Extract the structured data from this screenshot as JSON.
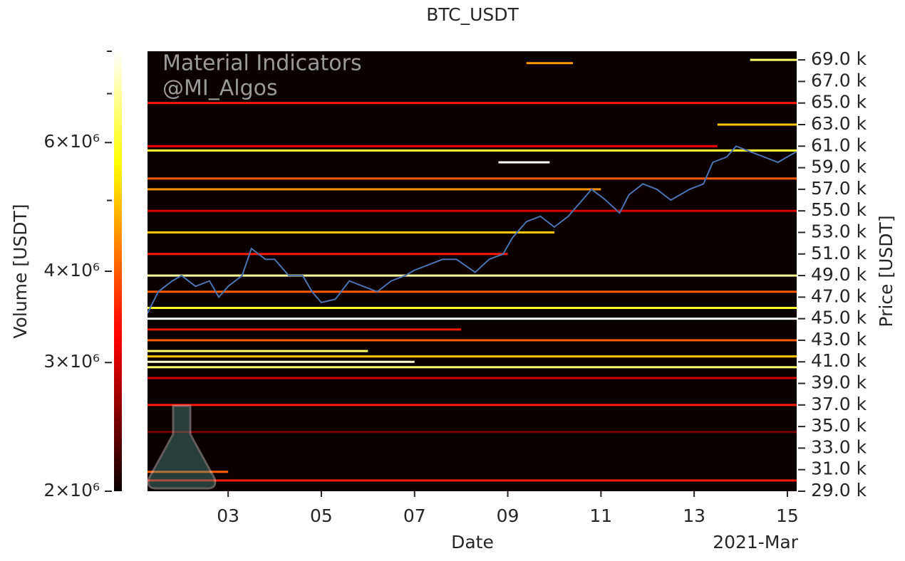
{
  "chart_data": {
    "type": "heatmap",
    "title": "BTC_USDT",
    "watermark": [
      "Material Indicators",
      "@MI_Algos"
    ],
    "xlabel": "Date",
    "x_offset_label": "2021-Mar",
    "ylabel": "Price [USDT]",
    "colorbar_label": "Volume [USDT]",
    "xlim": [
      1.27,
      15.2
    ],
    "xticks": [
      {
        "value": 3,
        "label": "03"
      },
      {
        "value": 5,
        "label": "05"
      },
      {
        "value": 7,
        "label": "07"
      },
      {
        "value": 9,
        "label": "09"
      },
      {
        "value": 11,
        "label": "11"
      },
      {
        "value": 13,
        "label": "13"
      },
      {
        "value": 15,
        "label": "15"
      }
    ],
    "ylim": [
      29000,
      69800
    ],
    "yticks": [
      {
        "value": 29000,
        "label": "29.0 k"
      },
      {
        "value": 31000,
        "label": "31.0 k"
      },
      {
        "value": 33000,
        "label": "33.0 k"
      },
      {
        "value": 35000,
        "label": "35.0 k"
      },
      {
        "value": 37000,
        "label": "37.0 k"
      },
      {
        "value": 39000,
        "label": "39.0 k"
      },
      {
        "value": 41000,
        "label": "41.0 k"
      },
      {
        "value": 43000,
        "label": "43.0 k"
      },
      {
        "value": 45000,
        "label": "45.0 k"
      },
      {
        "value": 47000,
        "label": "47.0 k"
      },
      {
        "value": 49000,
        "label": "49.0 k"
      },
      {
        "value": 51000,
        "label": "51.0 k"
      },
      {
        "value": 53000,
        "label": "53.0 k"
      },
      {
        "value": 55000,
        "label": "55.0 k"
      },
      {
        "value": 57000,
        "label": "57.0 k"
      },
      {
        "value": 59000,
        "label": "59.0 k"
      },
      {
        "value": 61000,
        "label": "61.0 k"
      },
      {
        "value": 63000,
        "label": "63.0 k"
      },
      {
        "value": 65000,
        "label": "65.0 k"
      },
      {
        "value": 67000,
        "label": "67.0 k"
      },
      {
        "value": 69000,
        "label": "69.0 k"
      }
    ],
    "colorbar_lim": [
      2000000,
      8000000
    ],
    "colorbar_log": true,
    "colorbar_ticks": [
      {
        "value": 2000000,
        "label": "2×10⁶"
      },
      {
        "value": 3000000,
        "label": "3×10⁶"
      },
      {
        "value": 4000000,
        "label": "4×10⁶"
      },
      {
        "value": 6000000,
        "label": "6×10⁶"
      }
    ],
    "colorbar_minor_ticks": [
      5000000,
      7000000,
      8000000
    ],
    "colormap": "hot",
    "levels": {
      "price": [
        68700,
        69000,
        65000,
        63000,
        61000,
        60600,
        59500,
        58000,
        57000,
        55000,
        53000,
        51000,
        49000,
        47500,
        46000,
        45000,
        44000,
        43000,
        42000,
        41500,
        41000,
        40500,
        39500,
        37000,
        34500,
        30800,
        30000
      ],
      "start": [
        9.4,
        14.2,
        1.27,
        13.5,
        1.27,
        1.27,
        8.8,
        1.27,
        1.27,
        1.27,
        1.27,
        1.27,
        1.27,
        1.27,
        1.27,
        1.27,
        1.27,
        1.27,
        1.27,
        1.27,
        1.27,
        1.27,
        1.27,
        1.27,
        1.27,
        1.27,
        1.27
      ],
      "end": [
        10.4,
        15.2,
        15.2,
        15.2,
        13.5,
        15.2,
        9.9,
        15.2,
        11,
        15.2,
        10,
        9,
        15.2,
        15.2,
        15.2,
        15.2,
        8,
        15.2,
        6,
        15.2,
        7,
        15.2,
        15.2,
        15.2,
        15.2,
        3,
        15.2
      ],
      "volume": [
        4500000,
        6500000,
        3500000,
        5000000,
        3200000,
        6000000,
        8000000,
        4000000,
        4500000,
        3000000,
        5000000,
        3500000,
        7000000,
        4000000,
        6000000,
        8000000,
        3500000,
        4000000,
        6500000,
        5000000,
        7500000,
        6500000,
        3000000,
        3500000,
        2500000,
        4000000,
        3500000
      ]
    },
    "line": {
      "color": "#4c72b0",
      "x": [
        1.27,
        1.5,
        1.8,
        2.0,
        2.3,
        2.6,
        2.8,
        3.0,
        3.3,
        3.5,
        3.8,
        4.0,
        4.3,
        4.6,
        4.8,
        5.0,
        5.3,
        5.6,
        5.9,
        6.2,
        6.5,
        6.8,
        7.0,
        7.3,
        7.6,
        7.9,
        8.3,
        8.6,
        8.9,
        9.1,
        9.4,
        9.7,
        10.0,
        10.3,
        10.6,
        10.8,
        11.1,
        11.4,
        11.6,
        11.9,
        12.2,
        12.5,
        12.7,
        12.9,
        13.2,
        13.4,
        13.7,
        13.9,
        14.2,
        14.5,
        14.8,
        15.0,
        15.2
      ],
      "values": [
        45500,
        47500,
        48500,
        49000,
        48000,
        48500,
        47000,
        48000,
        49000,
        51500,
        50500,
        50500,
        49000,
        49000,
        47500,
        46500,
        46800,
        48500,
        48000,
        47500,
        48500,
        49000,
        49500,
        50000,
        50500,
        50500,
        49300,
        50500,
        51000,
        52500,
        54000,
        54500,
        53500,
        54500,
        56000,
        57000,
        56000,
        54800,
        56500,
        57500,
        57000,
        56000,
        56500,
        57000,
        57500,
        59500,
        60000,
        61000,
        60500,
        60000,
        59500,
        60000,
        60500
      ]
    }
  }
}
